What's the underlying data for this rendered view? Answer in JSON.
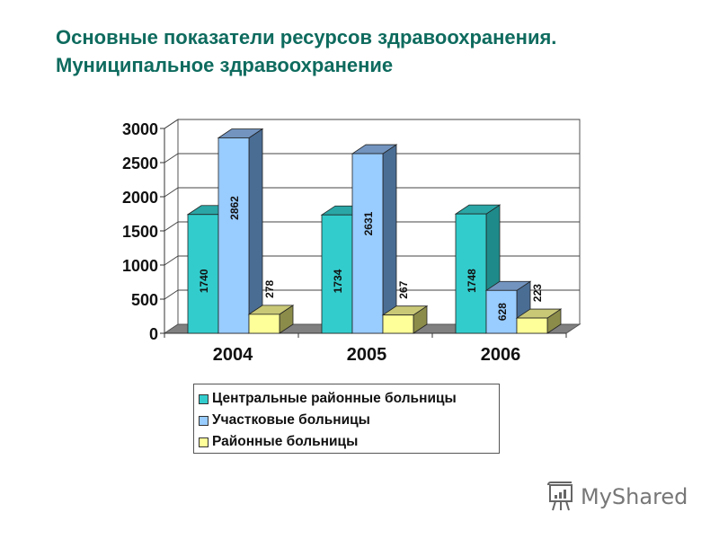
{
  "title": {
    "line1": "Основные показатели ресурсов здравоохранения.",
    "line2": "Муниципальное здравоохранение"
  },
  "chart_data": {
    "type": "bar",
    "style": "3d-clustered-column",
    "title": "",
    "categories": [
      "2004",
      "2005",
      "2006"
    ],
    "series": [
      {
        "name": "Центральные районные больницы",
        "values": [
          1740,
          1734,
          1748
        ],
        "color": "#33cccc"
      },
      {
        "name": "Участковые больницы",
        "values": [
          2862,
          2631,
          628
        ],
        "color": "#99ccff"
      },
      {
        "name": "Районные больницы",
        "values": [
          278,
          267,
          223
        ],
        "color": "#ffff99"
      }
    ],
    "yticks": [
      "0",
      "500",
      "1000",
      "1500",
      "2000",
      "2500",
      "3000"
    ],
    "ylim": [
      0,
      3000
    ],
    "xlabel": "",
    "ylabel": "",
    "grid": true,
    "data_labels": true,
    "legend_position": "bottom"
  },
  "legend": {
    "items": [
      {
        "label": "Центральные районные больницы",
        "color": "#33cccc"
      },
      {
        "label": "Участковые больницы",
        "color": "#99ccff"
      },
      {
        "label": "Районные больницы",
        "color": "#ffff99"
      }
    ]
  },
  "watermark": {
    "text": "MyShared",
    "icon": "presentation-board-icon"
  }
}
